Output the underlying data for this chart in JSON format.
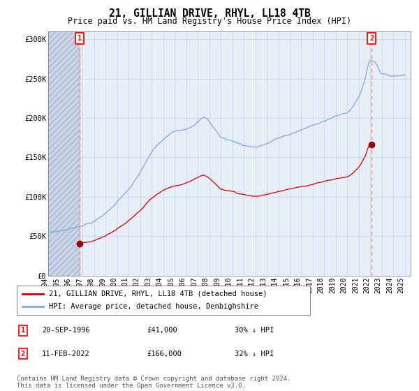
{
  "title": "21, GILLIAN DRIVE, RHYL, LL18 4TB",
  "subtitle": "Price paid vs. HM Land Registry's House Price Index (HPI)",
  "xlim_start": 1994.0,
  "xlim_end": 2025.5,
  "ylim_min": 0,
  "ylim_max": 310000,
  "yticks": [
    0,
    50000,
    100000,
    150000,
    200000,
    250000,
    300000
  ],
  "ytick_labels": [
    "£0",
    "£50K",
    "£100K",
    "£150K",
    "£200K",
    "£250K",
    "£300K"
  ],
  "xticks": [
    1994,
    1995,
    1996,
    1997,
    1998,
    1999,
    2000,
    2001,
    2002,
    2003,
    2004,
    2005,
    2006,
    2007,
    2008,
    2009,
    2010,
    2011,
    2012,
    2013,
    2014,
    2015,
    2016,
    2017,
    2018,
    2019,
    2020,
    2021,
    2022,
    2023,
    2024,
    2025
  ],
  "sale1_x": 1996.72,
  "sale1_y": 41000,
  "sale1_label": "1",
  "sale1_date": "20-SEP-1996",
  "sale1_price": "£41,000",
  "sale1_hpi": "30% ↓ HPI",
  "sale2_x": 2022.11,
  "sale2_y": 166000,
  "sale2_label": "2",
  "sale2_date": "11-FEB-2022",
  "sale2_price": "£166,000",
  "sale2_hpi": "32% ↓ HPI",
  "line_color_sold": "#cc0000",
  "line_color_hpi": "#7aabdb",
  "dot_color_sold": "#990000",
  "vline_color": "#ff8888",
  "legend_label_sold": "21, GILLIAN DRIVE, RHYL, LL18 4TB (detached house)",
  "legend_label_hpi": "HPI: Average price, detached house, Denbighshire",
  "footer": "Contains HM Land Registry data © Crown copyright and database right 2024.\nThis data is licensed under the Open Government Licence v3.0.",
  "bg_color": "#ffffff",
  "plot_bg_color": "#e8eef8",
  "grid_color": "#c8d0e0",
  "hpi_keypoints_x": [
    1994.0,
    1995.0,
    1996.0,
    1997.0,
    1998.0,
    1999.0,
    2000.0,
    2001.0,
    2002.0,
    2003.0,
    2004.0,
    2005.0,
    2006.0,
    2007.0,
    2007.5,
    2008.5,
    2009.0,
    2010.0,
    2011.0,
    2012.0,
    2013.0,
    2014.0,
    2015.0,
    2016.0,
    2017.0,
    2018.0,
    2019.0,
    2020.0,
    2021.0,
    2021.5,
    2022.0,
    2022.5,
    2023.0,
    2024.0,
    2025.0
  ],
  "hpi_keypoints_y": [
    55000,
    57000,
    60000,
    65000,
    70000,
    80000,
    95000,
    110000,
    130000,
    155000,
    170000,
    180000,
    185000,
    195000,
    200000,
    185000,
    175000,
    170000,
    165000,
    163000,
    167000,
    173000,
    178000,
    183000,
    188000,
    195000,
    200000,
    205000,
    225000,
    245000,
    272000,
    268000,
    255000,
    252000,
    255000
  ]
}
